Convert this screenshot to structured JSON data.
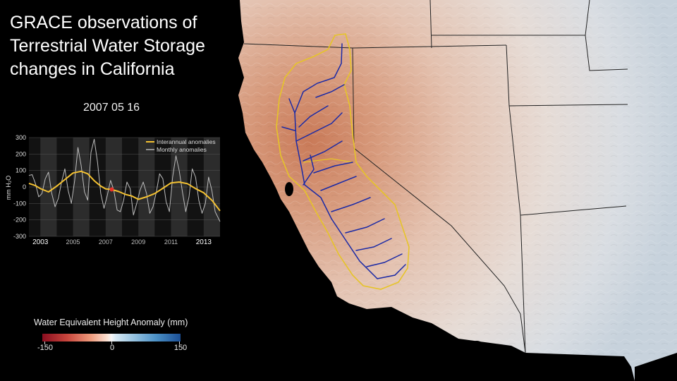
{
  "title_lines": [
    "GRACE observations of",
    "Terrestrial Water Storage",
    "changes in California"
  ],
  "date": "2007 05 16",
  "chart_data": {
    "type": "line",
    "ylabel": "mm H₂O",
    "ylim": [
      -300,
      300
    ],
    "yticks": [
      300,
      200,
      100,
      0,
      -100,
      -200,
      -300
    ],
    "xlim": [
      2002.3,
      2014.0
    ],
    "xticks": [
      {
        "label": "2003",
        "x": 2003.0,
        "bold": true
      },
      {
        "label": "2005",
        "x": 2005.0,
        "bold": false
      },
      {
        "label": "2007",
        "x": 2007.0,
        "bold": false
      },
      {
        "label": "2009",
        "x": 2009.0,
        "bold": false
      },
      {
        "label": "2011",
        "x": 2011.0,
        "bold": false
      },
      {
        "label": "2013",
        "x": 2013.0,
        "bold": true
      }
    ],
    "shaded_years": [
      2003,
      2005,
      2007,
      2009,
      2011,
      2013
    ],
    "current_marker": {
      "x": 2007.37,
      "y": -15,
      "color": "#e8322a"
    },
    "series": [
      {
        "name": "Interannual anomalies",
        "color": "#f5c231",
        "x": [
          2002.3,
          2002.7,
          2003.0,
          2003.5,
          2004.0,
          2004.5,
          2005.0,
          2005.5,
          2005.9,
          2006.3,
          2006.7,
          2007.0,
          2007.37,
          2007.8,
          2008.2,
          2008.6,
          2009.0,
          2009.5,
          2010.0,
          2010.5,
          2011.0,
          2011.5,
          2012.0,
          2012.5,
          2013.0,
          2013.5,
          2014.0
        ],
        "y": [
          22,
          8,
          -10,
          -30,
          5,
          45,
          85,
          95,
          80,
          38,
          5,
          -12,
          -15,
          -28,
          -45,
          -55,
          -75,
          -60,
          -40,
          -8,
          25,
          30,
          20,
          -10,
          -35,
          -80,
          -145
        ]
      },
      {
        "name": "Monthly anomalies",
        "color": "#bdbdbd",
        "x": [
          2002.3,
          2002.5,
          2002.7,
          2002.9,
          2003.1,
          2003.3,
          2003.5,
          2003.7,
          2003.9,
          2004.1,
          2004.3,
          2004.5,
          2004.7,
          2004.9,
          2005.1,
          2005.3,
          2005.5,
          2005.7,
          2005.9,
          2006.1,
          2006.3,
          2006.5,
          2006.7,
          2006.9,
          2007.1,
          2007.3,
          2007.5,
          2007.7,
          2007.9,
          2008.1,
          2008.3,
          2008.5,
          2008.7,
          2008.9,
          2009.1,
          2009.3,
          2009.5,
          2009.7,
          2009.9,
          2010.1,
          2010.3,
          2010.5,
          2010.7,
          2010.9,
          2011.1,
          2011.3,
          2011.5,
          2011.7,
          2011.9,
          2012.1,
          2012.3,
          2012.5,
          2012.7,
          2012.9,
          2013.1,
          2013.3,
          2013.5,
          2013.7,
          2013.9,
          2014.0
        ],
        "y": [
          70,
          75,
          20,
          -60,
          -40,
          50,
          90,
          -40,
          -120,
          -70,
          30,
          110,
          -20,
          -100,
          40,
          240,
          130,
          -30,
          -80,
          210,
          290,
          150,
          -40,
          -130,
          -50,
          40,
          -20,
          -140,
          -150,
          -80,
          30,
          -10,
          -170,
          -100,
          -20,
          30,
          -40,
          -160,
          -120,
          -30,
          80,
          50,
          -90,
          -150,
          60,
          190,
          100,
          -30,
          -150,
          -60,
          110,
          60,
          -80,
          -160,
          -100,
          60,
          -20,
          -150,
          -190,
          -210
        ]
      }
    ]
  },
  "colorbar": {
    "title": "Water Equivalent Height Anomaly (mm)",
    "labels": [
      "-150",
      "0",
      "150"
    ]
  }
}
